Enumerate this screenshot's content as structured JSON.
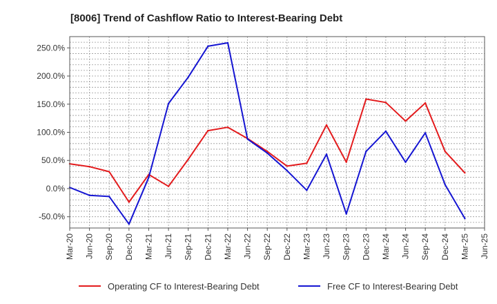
{
  "chart_data": {
    "type": "line",
    "title": "[8006]  Trend of Cashflow Ratio to Interest-Bearing Debt",
    "xlabel": "",
    "ylabel": "",
    "ylim": [
      -70,
      270
    ],
    "yticks": [
      -50,
      0,
      50,
      100,
      150,
      200,
      250
    ],
    "ytick_labels": [
      "-50.0%",
      "0.0%",
      "50.0%",
      "100.0%",
      "150.0%",
      "200.0%",
      "250.0%"
    ],
    "categories": [
      "Mar-20",
      "Jun-20",
      "Sep-20",
      "Dec-20",
      "Mar-21",
      "Jun-21",
      "Sep-21",
      "Dec-21",
      "Mar-22",
      "Jun-22",
      "Sep-22",
      "Dec-22",
      "Mar-23",
      "Jun-23",
      "Sep-23",
      "Dec-23",
      "Mar-24",
      "Jun-24",
      "Sep-24",
      "Dec-24",
      "Mar-25",
      "Jun-25"
    ],
    "grid": true,
    "legend_position": "bottom",
    "series": [
      {
        "name": "Operating CF to Interest-Bearing Debt",
        "color": "#e31a1c",
        "values": [
          44,
          39,
          30,
          -24,
          25,
          4,
          52,
          103,
          109,
          89,
          66,
          40,
          45,
          113,
          47,
          159,
          153,
          120,
          152,
          66,
          28,
          null
        ]
      },
      {
        "name": "Free CF to Interest-Bearing Debt",
        "color": "#1414d2",
        "values": [
          2,
          -12,
          -14,
          -63,
          20,
          151,
          198,
          253,
          259,
          88,
          63,
          32,
          -3,
          61,
          -45,
          66,
          102,
          47,
          99,
          7,
          -53,
          null
        ]
      }
    ]
  }
}
